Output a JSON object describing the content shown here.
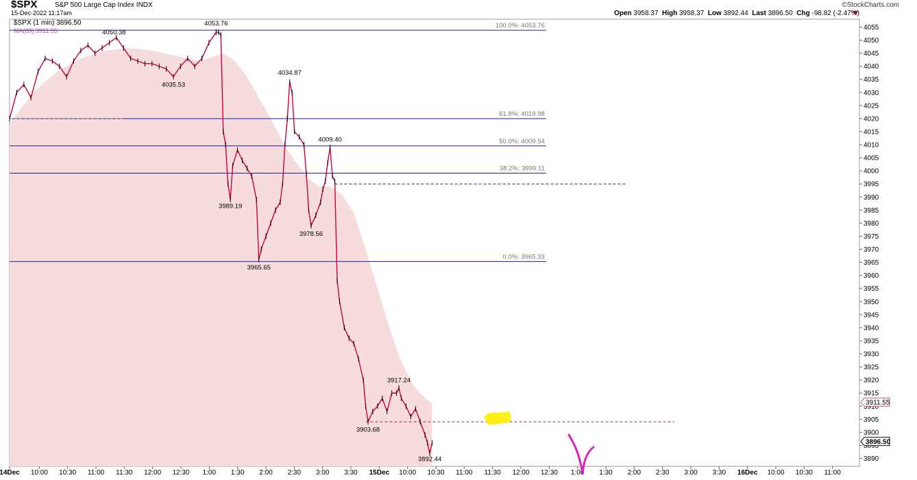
{
  "header": {
    "symbol": "$SPX",
    "name": "S&P 500 Large Cap Index",
    "exchange": "INDX",
    "date": "15-Dec-2022 11:17am",
    "brand": "©StockCharts.com",
    "open_label": "Open",
    "open": "3958.37",
    "high_label": "High",
    "high": "3958.37",
    "low_label": "Low",
    "low": "3892.44",
    "last_label": "Last",
    "last": "3896.50",
    "chg_label": "Chg",
    "chg": "-98.82 (-2.47%)"
  },
  "legend": {
    "price": "$SPX (1 min) 3896.50",
    "ma": "MA(89) 3911.55"
  },
  "colors": {
    "up": "#000000",
    "down": "#cc0033",
    "ma_fill": "#f6dcdc",
    "fib": "#1a1aa6",
    "dashed": "#b02020"
  },
  "chart_data": {
    "type": "line",
    "title": "",
    "ylim": [
      3887,
      4058
    ],
    "yticks": [
      3890,
      3895,
      3900,
      3905,
      3910,
      3915,
      3920,
      3925,
      3930,
      3935,
      3940,
      3945,
      3950,
      3955,
      3960,
      3965,
      3970,
      3975,
      3980,
      3985,
      3990,
      3995,
      4000,
      4005,
      4010,
      4015,
      4020,
      4025,
      4030,
      4035,
      4040,
      4045,
      4050,
      4055
    ],
    "xticks": [
      "14Dec",
      "10:00",
      "10:30",
      "11:00",
      "11:30",
      "12:00",
      "12:30",
      "1:00",
      "1:30",
      "2:00",
      "2:30",
      "3:00",
      "3:30",
      "15Dec",
      "10:00",
      "10:30",
      "11:00",
      "11:30",
      "12:00",
      "12:30",
      "1:00",
      "1:30",
      "2:00",
      "2:30",
      "3:00",
      "3:30",
      "16Dec",
      "10:00",
      "10:30",
      "11:00"
    ],
    "series": [
      {
        "points": [
          [
            0,
            4020
          ],
          [
            3,
            4030
          ],
          [
            6,
            4033
          ],
          [
            9,
            4028
          ],
          [
            12,
            4038
          ],
          [
            15,
            4043
          ],
          [
            18,
            4042
          ],
          [
            21,
            4040
          ],
          [
            24,
            4036
          ],
          [
            27,
            4042
          ],
          [
            30,
            4046
          ],
          [
            33,
            4048
          ],
          [
            36,
            4045
          ],
          [
            39,
            4047
          ],
          [
            42,
            4049
          ],
          [
            45,
            4051
          ],
          [
            48,
            4047
          ],
          [
            51,
            4043
          ],
          [
            54,
            4042
          ],
          [
            57,
            4041
          ],
          [
            60,
            4041
          ],
          [
            63,
            4040
          ],
          [
            66,
            4039
          ],
          [
            69,
            4036
          ],
          [
            72,
            4040
          ],
          [
            75,
            4043
          ],
          [
            78,
            4040
          ],
          [
            81,
            4043
          ],
          [
            84,
            4049
          ],
          [
            87,
            4053
          ],
          [
            88,
            4053
          ],
          [
            89,
            4052
          ],
          [
            90,
            4015
          ],
          [
            91,
            4010
          ],
          [
            92,
            3995
          ],
          [
            93,
            3989
          ],
          [
            94,
            4002
          ],
          [
            96,
            4008
          ],
          [
            98,
            4004
          ],
          [
            100,
            4001
          ],
          [
            102,
            3998
          ],
          [
            104,
            3989
          ],
          [
            105,
            3966
          ],
          [
            106,
            3970
          ],
          [
            108,
            3975
          ],
          [
            110,
            3980
          ],
          [
            112,
            3985
          ],
          [
            114,
            3988
          ],
          [
            115,
            3995
          ],
          [
            116,
            4010
          ],
          [
            117,
            4020
          ],
          [
            118,
            4034
          ],
          [
            119,
            4030
          ],
          [
            120,
            4015
          ],
          [
            122,
            4013
          ],
          [
            124,
            4010
          ],
          [
            125,
            3999
          ],
          [
            126,
            3985
          ],
          [
            127,
            3979
          ],
          [
            129,
            3983
          ],
          [
            131,
            3988
          ],
          [
            132,
            3993
          ],
          [
            133,
            3996
          ],
          [
            134,
            4003
          ],
          [
            135,
            4009
          ],
          [
            136,
            3998
          ],
          [
            137,
            3996
          ],
          [
            138,
            3958
          ],
          [
            139,
            3950
          ],
          [
            141,
            3940
          ],
          [
            143,
            3936
          ],
          [
            145,
            3934
          ],
          [
            147,
            3928
          ],
          [
            149,
            3920
          ],
          [
            150,
            3910
          ],
          [
            151,
            3904
          ],
          [
            153,
            3908
          ],
          [
            155,
            3910
          ],
          [
            157,
            3913
          ],
          [
            159,
            3908
          ],
          [
            161,
            3915
          ],
          [
            163,
            3915
          ],
          [
            164,
            3917
          ],
          [
            165,
            3913
          ],
          [
            167,
            3910
          ],
          [
            169,
            3906
          ],
          [
            171,
            3909
          ],
          [
            173,
            3904
          ],
          [
            175,
            3899
          ],
          [
            176,
            3896
          ],
          [
            177,
            3892
          ],
          [
            178,
            3896
          ]
        ]
      },
      {
        "name": "MA(89)",
        "points": [
          [
            0,
            4018
          ],
          [
            10,
            4030
          ],
          [
            20,
            4038
          ],
          [
            30,
            4043
          ],
          [
            40,
            4046
          ],
          [
            50,
            4047
          ],
          [
            60,
            4046
          ],
          [
            70,
            4044
          ],
          [
            80,
            4042
          ],
          [
            90,
            4045
          ],
          [
            95,
            4042
          ],
          [
            100,
            4036
          ],
          [
            105,
            4028
          ],
          [
            110,
            4020
          ],
          [
            115,
            4011
          ],
          [
            120,
            4004
          ],
          [
            125,
            3998
          ],
          [
            130,
            3994
          ],
          [
            135,
            3994
          ],
          [
            140,
            3991
          ],
          [
            145,
            3984
          ],
          [
            150,
            3970
          ],
          [
            155,
            3955
          ],
          [
            160,
            3940
          ],
          [
            165,
            3927
          ],
          [
            170,
            3918
          ],
          [
            175,
            3913
          ],
          [
            178,
            3911
          ]
        ]
      }
    ],
    "fib_levels": [
      {
        "label": "100.0%: 4053.76",
        "value": 4053.76
      },
      {
        "label": "61.8%: 4019.98",
        "value": 4019.98
      },
      {
        "label": "50.0%: 4009.54",
        "value": 4009.54
      },
      {
        "label": "38.2%: 3999.11",
        "value": 3999.11
      },
      {
        "label": "0.0%: 3965.33",
        "value": 3965.33
      }
    ],
    "price_labels": [
      {
        "text": "4050.38",
        "x": 44,
        "y": 4050.38
      },
      {
        "text": "4053.76",
        "x": 87,
        "y": 4053.76
      },
      {
        "text": "4035.53",
        "x": 69,
        "y": 4035.53
      },
      {
        "text": "4034.87",
        "x": 118,
        "y": 4034.87
      },
      {
        "text": "4009.40",
        "x": 135,
        "y": 4009.4
      },
      {
        "text": "3989.19",
        "x": 93,
        "y": 3989.19
      },
      {
        "text": "3978.56",
        "x": 127,
        "y": 3978.56
      },
      {
        "text": "3965.65",
        "x": 105,
        "y": 3965.65
      },
      {
        "text": "3917.24",
        "x": 164,
        "y": 3917.24
      },
      {
        "text": "3903.68",
        "x": 151,
        "y": 3903.68
      },
      {
        "text": "3892.44",
        "x": 177,
        "y": 3892.44
      }
    ],
    "axis_tags": [
      {
        "text": "3911.55",
        "value": 3911.55
      },
      {
        "text": "3896.50",
        "value": 3896.5
      }
    ],
    "dashed_lines": [
      {
        "value": 4020,
        "x_start": 0,
        "x_end": 48
      },
      {
        "value": 3995,
        "x_start": 137,
        "x_end": 260
      },
      {
        "value": 3904,
        "x_start": 150,
        "x_end": 280
      }
    ]
  }
}
